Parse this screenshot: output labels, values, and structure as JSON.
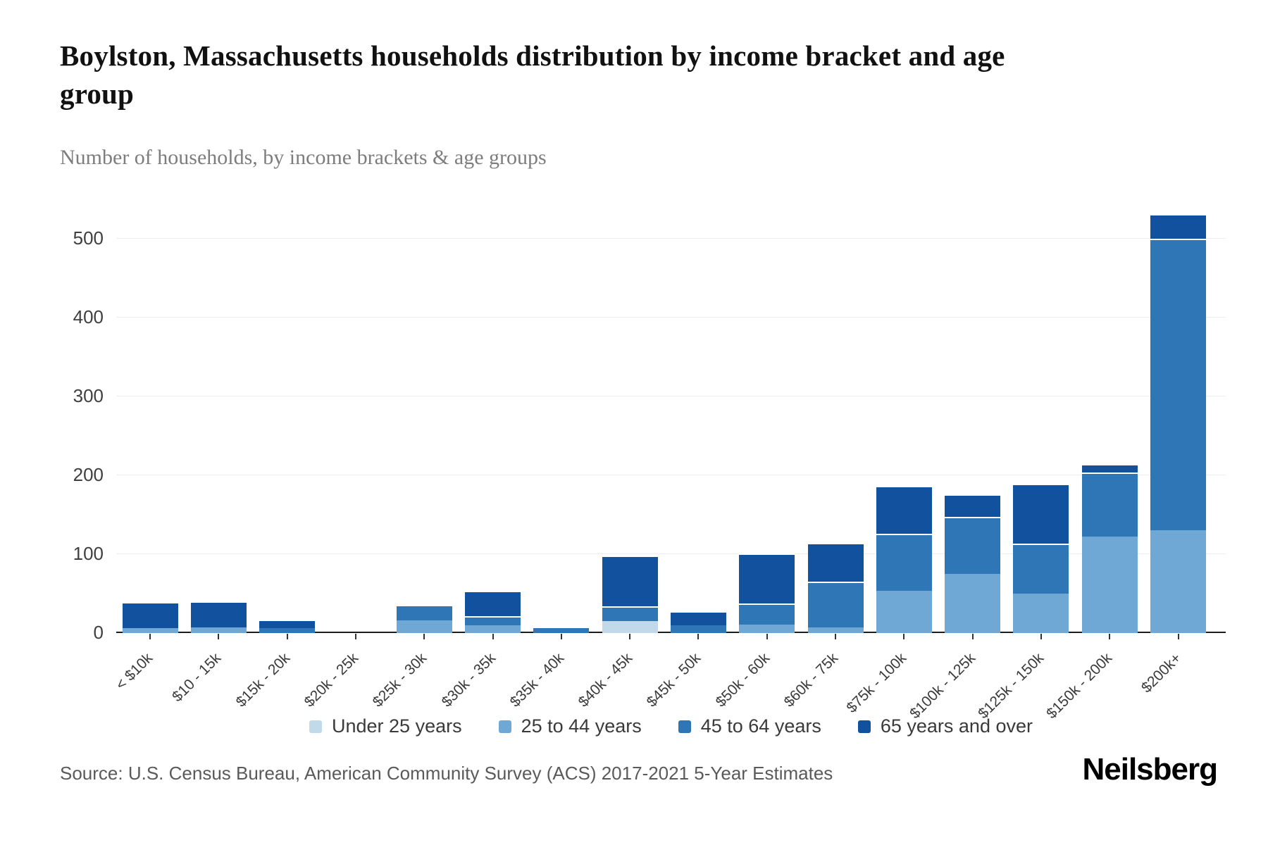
{
  "header": {
    "title": "Boylston, Massachusetts households distribution by income bracket and age group",
    "subtitle": "Number of households, by income brackets & age groups"
  },
  "footer": {
    "source": "Source: U.S. Census Bureau, American Community Survey (ACS) 2017-2021 5-Year Estimates",
    "brand": "Neilsberg"
  },
  "chart_data": {
    "type": "bar",
    "stacked": true,
    "title": "Boylston, Massachusetts households distribution by income bracket and age group",
    "xlabel": "",
    "ylabel": "Number of households",
    "ylim": [
      0,
      549
    ],
    "yticks": [
      0,
      100,
      200,
      300,
      400,
      500
    ],
    "grid": true,
    "legend_position": "bottom",
    "categories": [
      "< $10k",
      "$10 - 15k",
      "$15k - 20k",
      "$20k - 25k",
      "$25k - 30k",
      "$30k - 35k",
      "$35k - 40k",
      "$40k - 45k",
      "$45k - 50k",
      "$50k - 60k",
      "$60k - 75k",
      "$75k - 100k",
      "$100k - 125k",
      "$125k - 150k",
      "$150k - 200k",
      "$200k+"
    ],
    "series": [
      {
        "name": "Under 25 years",
        "color": "#c2d9ea",
        "values": [
          0,
          0,
          0,
          0,
          0,
          0,
          0,
          15,
          0,
          0,
          0,
          0,
          0,
          0,
          0,
          0
        ]
      },
      {
        "name": "25 to 44 years",
        "color": "#6fa8d4",
        "values": [
          6,
          7,
          0,
          0,
          16,
          10,
          0,
          0,
          0,
          11,
          7,
          54,
          75,
          50,
          122,
          130
        ]
      },
      {
        "name": "45 to 64 years",
        "color": "#2e76b5",
        "values": [
          0,
          0,
          6,
          0,
          20,
          12,
          6,
          19,
          10,
          27,
          58,
          72,
          72,
          63,
          81,
          370
        ]
      },
      {
        "name": "65 years and over",
        "color": "#11519e",
        "values": [
          33,
          33,
          11,
          0,
          0,
          32,
          0,
          64,
          18,
          63,
          49,
          61,
          29,
          76,
          11,
          31
        ]
      }
    ]
  }
}
